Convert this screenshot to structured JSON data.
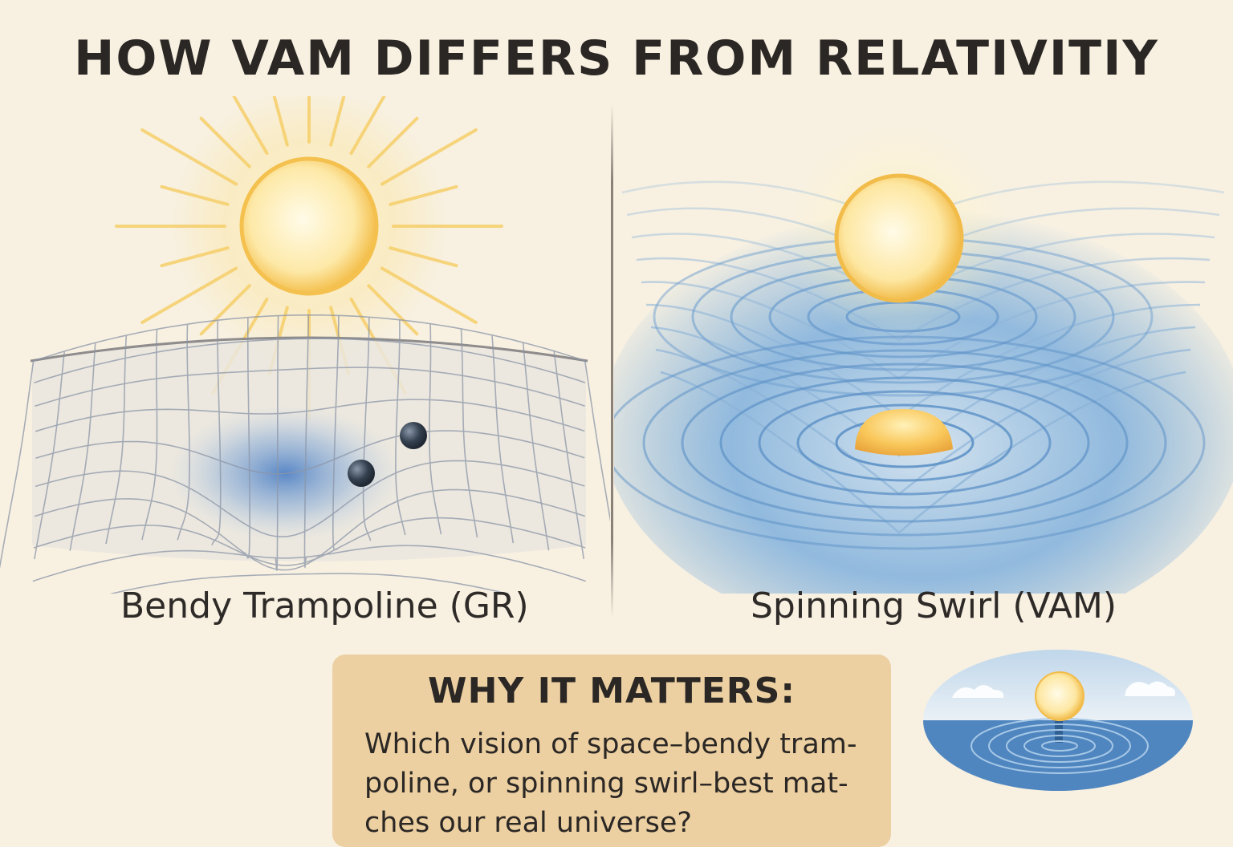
{
  "title": "HOW VAM DIFFERS FROM RELATIVITIY",
  "panels": {
    "left": {
      "caption": "Bendy Trampoline (GR)"
    },
    "right": {
      "caption": "Spinning Swirl (VAM)"
    }
  },
  "callout": {
    "heading": "WHY IT MATTERS:",
    "lines": [
      "Which vision of space–bendy tram-",
      "poline, or spinning swirl–best mat-",
      "ches our real universe?"
    ]
  },
  "colors": {
    "background": "#f8f1e2",
    "sun": "#f6c85a",
    "water": "#6aa3d8",
    "callout_box": "#ecd0a2",
    "text": "#2b2724"
  }
}
